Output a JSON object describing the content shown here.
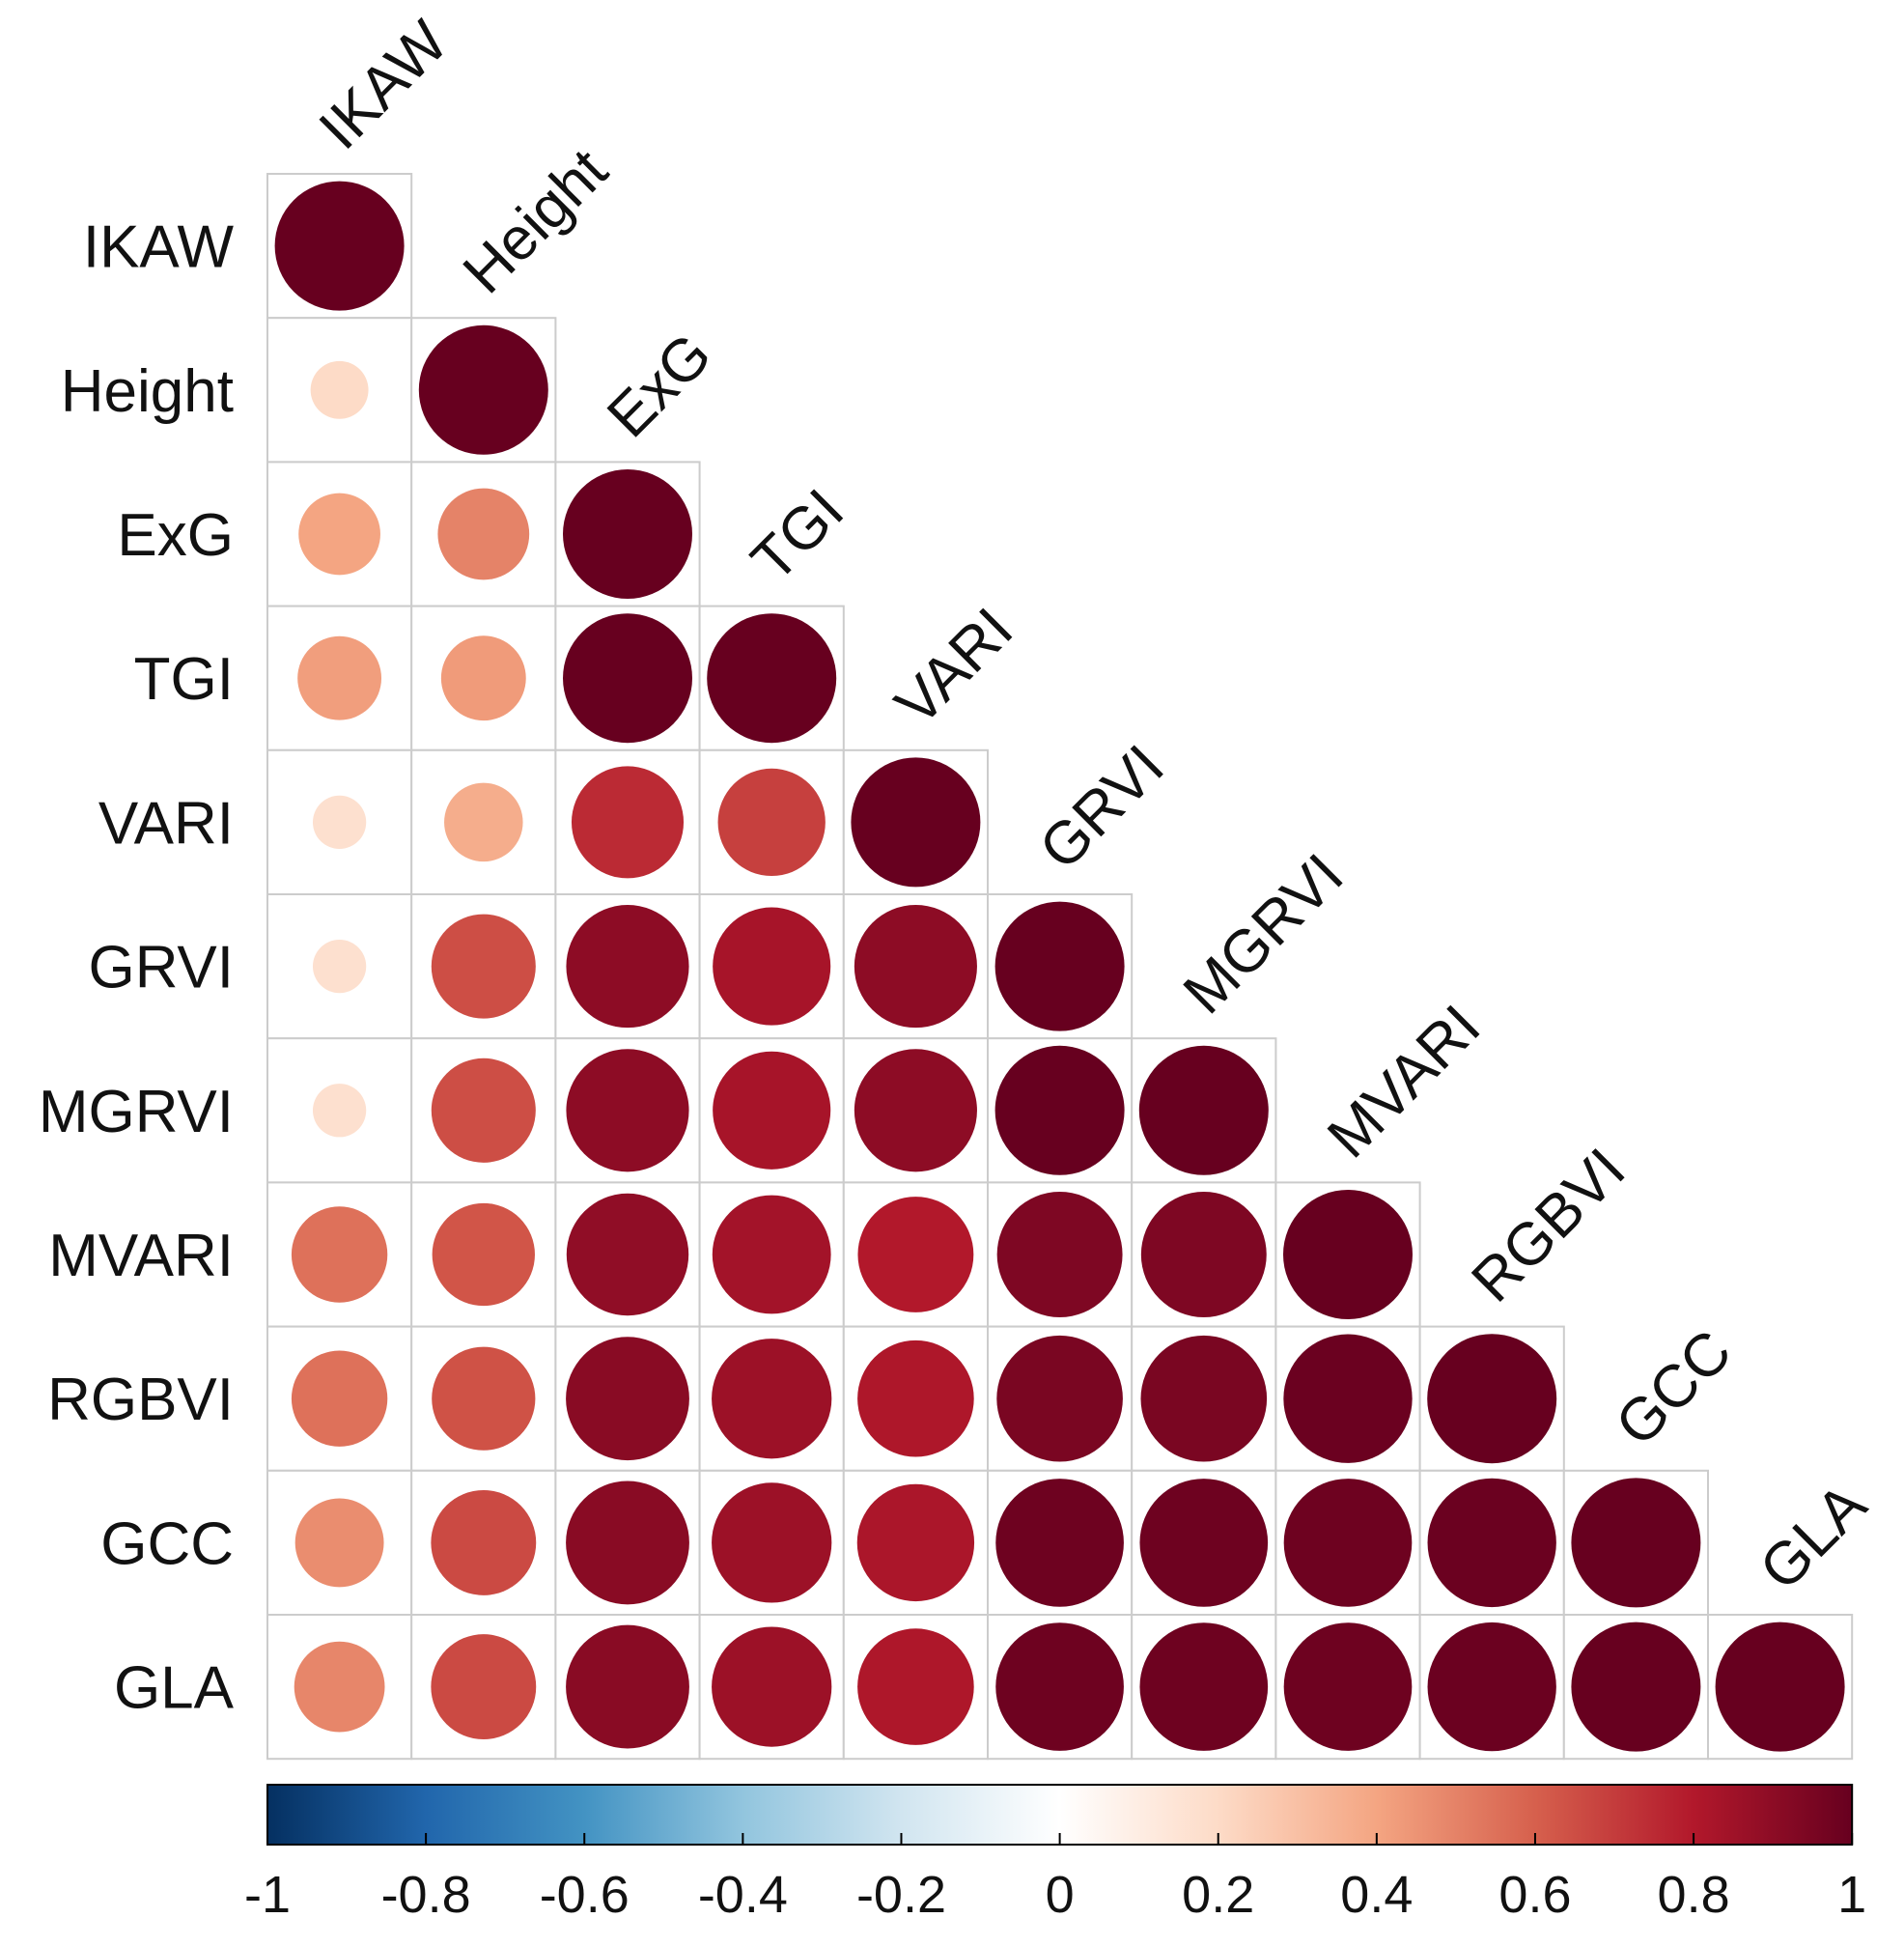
{
  "chart_data": {
    "type": "heatmap",
    "style": "correlation-circle-lower-triangle",
    "variables": [
      "IKAW",
      "Height",
      "ExG",
      "TGI",
      "VARI",
      "GRVI",
      "MGRVI",
      "MVARI",
      "RGBVI",
      "GCC",
      "GLA"
    ],
    "matrix": [
      [
        1.0,
        null,
        null,
        null,
        null,
        null,
        null,
        null,
        null,
        null,
        null
      ],
      [
        0.2,
        1.0,
        null,
        null,
        null,
        null,
        null,
        null,
        null,
        null,
        null
      ],
      [
        0.4,
        0.5,
        1.0,
        null,
        null,
        null,
        null,
        null,
        null,
        null,
        null
      ],
      [
        0.42,
        0.43,
        1.0,
        1.0,
        null,
        null,
        null,
        null,
        null,
        null,
        null
      ],
      [
        0.17,
        0.37,
        0.75,
        0.69,
        1.0,
        null,
        null,
        null,
        null,
        null,
        null
      ],
      [
        0.17,
        0.65,
        0.9,
        0.83,
        0.9,
        1.0,
        null,
        null,
        null,
        null,
        null
      ],
      [
        0.17,
        0.65,
        0.9,
        0.83,
        0.9,
        1.0,
        1.0,
        null,
        null,
        null,
        null
      ],
      [
        0.55,
        0.63,
        0.89,
        0.84,
        0.8,
        0.94,
        0.94,
        1.0,
        null,
        null,
        null
      ],
      [
        0.55,
        0.64,
        0.91,
        0.86,
        0.81,
        0.95,
        0.95,
        0.99,
        1.0,
        null,
        null
      ],
      [
        0.47,
        0.66,
        0.91,
        0.86,
        0.82,
        0.98,
        0.98,
        0.98,
        0.99,
        1.0,
        null
      ],
      [
        0.49,
        0.66,
        0.91,
        0.86,
        0.81,
        0.98,
        0.98,
        0.98,
        0.99,
        1.0,
        1.0
      ]
    ],
    "colorbar": {
      "min": -1,
      "max": 1,
      "ticks": [
        -1,
        -0.8,
        -0.6,
        -0.4,
        -0.2,
        0,
        0.2,
        0.4,
        0.6,
        0.8,
        1
      ],
      "tick_labels": [
        "-1",
        "-0.8",
        "-0.6",
        "-0.4",
        "-0.2",
        "0",
        "0.2",
        "0.4",
        "0.6",
        "0.8",
        "1"
      ],
      "colors": [
        "#053061",
        "#2166AC",
        "#4393C3",
        "#92C5DE",
        "#D1E5F0",
        "#FFFFFF",
        "#FDDBC7",
        "#F4A582",
        "#D6604D",
        "#B2182B",
        "#67001F"
      ]
    },
    "grid": true,
    "legend": "bottom"
  }
}
